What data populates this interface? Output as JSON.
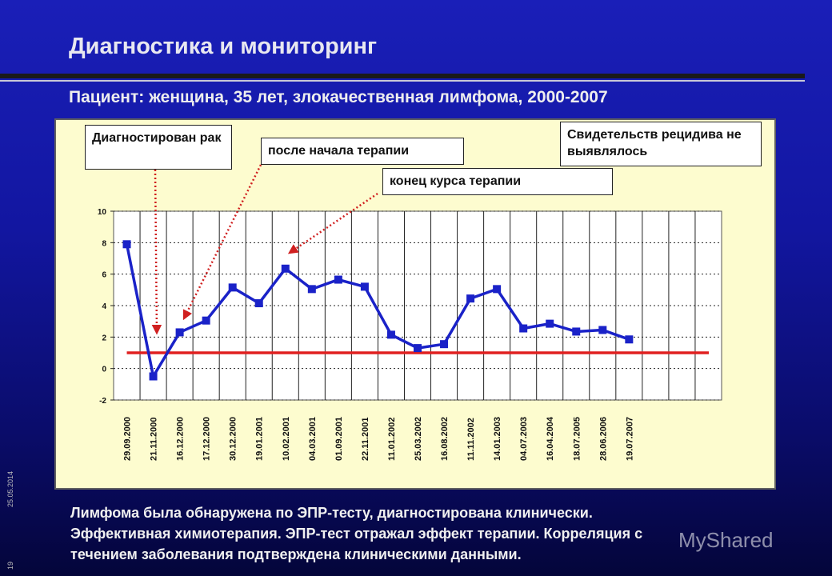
{
  "title": "Диагностика и мониторинг",
  "subtitle": "Пациент: женщина, 35 лет, злокачественная лимфома, 2000-2007",
  "annotations": {
    "diagnosed": "Диагностирован рак",
    "after_start": "после начала терапии",
    "course_end": "конец курса терапии",
    "no_relapse": "Свидетельств рецидива не выявлялось"
  },
  "caption": {
    "line1": "Лимфома была обнаружена по ЭПР-тесту, диагностирована клинически.",
    "line2": "Эффективная химиотерапия. ЭПР-тест отражал эффект терапии. Корреляция с",
    "line3": "течением заболевания подтверждена клиническими данными."
  },
  "side": {
    "date": "25.05.2014",
    "page": "19"
  },
  "watermark": "MyShared",
  "colors": {
    "series": "#1a22c8",
    "threshold": "#e02020",
    "arrow": "#d02020"
  },
  "chart_data": {
    "type": "line",
    "categories": [
      "29.09.2000",
      "21.11.2000",
      "16.12.2000",
      "17.12.2000",
      "30.12.2000",
      "19.01.2001",
      "10.02.2001",
      "04.03.2001",
      "01.09.2001",
      "22.11.2001",
      "11.01.2002",
      "25.03.2002",
      "16.08.2002",
      "11.11.2002",
      "14.01.2003",
      "04.07.2003",
      "16.04.2004",
      "18.07.2005",
      "28.06.2006",
      "19.07.2007"
    ],
    "values": [
      7.9,
      -0.5,
      2.3,
      3.05,
      5.15,
      4.15,
      6.35,
      5.05,
      5.65,
      5.2,
      2.15,
      1.3,
      1.55,
      4.45,
      5.05,
      2.55,
      2.85,
      2.35,
      2.45,
      1.85
    ],
    "threshold": 1,
    "ylim": [
      -2,
      10
    ],
    "yticks": [
      "10",
      "8",
      "6",
      "4",
      "2",
      "0",
      "-2"
    ],
    "grid": true
  }
}
